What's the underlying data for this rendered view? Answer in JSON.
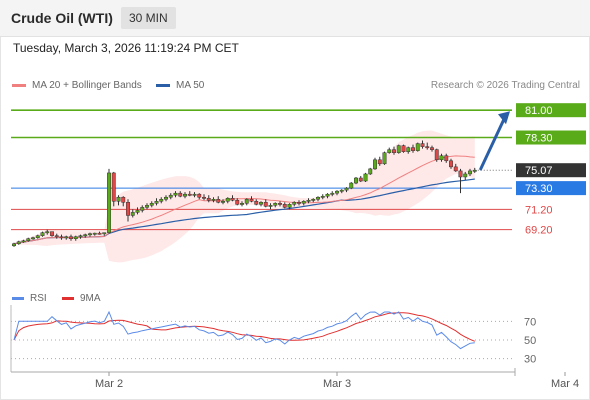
{
  "header": {
    "instrument": "Crude Oil (WTI)",
    "timeframe": "30 MIN",
    "datetime": "Tuesday, March 3, 2026 11:19:24 PM CET"
  },
  "legend": {
    "ma20_label": "MA 20 + Bollinger Bands",
    "ma50_label": "MA 50",
    "credit": "Research © 2026 Trading Central"
  },
  "colors": {
    "ma20": "#f08080",
    "ma50": "#2a5fa8",
    "bands": "#fde0e0",
    "green": "#5aab1a",
    "red": "#e04848",
    "current": "#333333",
    "pivot": "#2a7ae4",
    "arrow": "#2a5fa8",
    "rsi": "#5b8be8",
    "rsi_ma": "#e03030"
  },
  "chart_data": [
    {
      "type": "candlestick",
      "x_labels": [
        "Mar 2",
        "Mar 3",
        "Mar 4"
      ],
      "x_label_index": [
        20,
        68,
        116
      ],
      "ylim": [
        66.0,
        82.5
      ],
      "current_price": "75.07",
      "levels": [
        {
          "value": 81.0,
          "label": "81.00",
          "kind": "resistance"
        },
        {
          "value": 78.3,
          "label": "78.30",
          "kind": "resistance"
        },
        {
          "value": 73.3,
          "label": "73.30",
          "kind": "pivot"
        },
        {
          "value": 71.2,
          "label": "71.20",
          "kind": "support"
        },
        {
          "value": 69.2,
          "label": "69.20",
          "kind": "support"
        }
      ],
      "forecast_arrow": {
        "from_price": 75.2,
        "to_price": 80.9
      },
      "candles": [
        [
          67.6,
          67.9,
          67.5,
          67.8
        ],
        [
          67.8,
          68.1,
          67.7,
          68.0
        ],
        [
          68.0,
          68.2,
          67.9,
          68.1
        ],
        [
          68.1,
          68.4,
          68.0,
          68.3
        ],
        [
          68.3,
          68.5,
          68.2,
          68.4
        ],
        [
          68.4,
          68.7,
          68.3,
          68.6
        ],
        [
          68.6,
          69.0,
          68.5,
          68.9
        ],
        [
          68.9,
          69.2,
          68.7,
          69.0
        ],
        [
          69.0,
          69.0,
          68.5,
          68.6
        ],
        [
          68.6,
          68.8,
          68.3,
          68.5
        ],
        [
          68.5,
          68.7,
          68.2,
          68.4
        ],
        [
          68.4,
          68.6,
          68.2,
          68.5
        ],
        [
          68.5,
          68.7,
          68.1,
          68.3
        ],
        [
          68.3,
          68.6,
          68.1,
          68.5
        ],
        [
          68.5,
          68.7,
          68.3,
          68.6
        ],
        [
          68.6,
          68.8,
          68.4,
          68.7
        ],
        [
          68.7,
          68.9,
          68.5,
          68.8
        ],
        [
          68.8,
          68.9,
          68.6,
          68.85
        ],
        [
          68.85,
          69.0,
          68.7,
          68.8
        ],
        [
          68.8,
          68.9,
          68.6,
          68.9
        ],
        [
          68.9,
          75.2,
          68.8,
          74.8
        ],
        [
          74.8,
          74.9,
          71.5,
          72.0
        ],
        [
          72.0,
          72.6,
          71.6,
          72.4
        ],
        [
          72.4,
          72.5,
          71.5,
          71.9
        ],
        [
          71.9,
          72.2,
          70.0,
          70.6
        ],
        [
          70.6,
          71.2,
          70.4,
          70.9
        ],
        [
          70.9,
          71.4,
          70.7,
          71.1
        ],
        [
          71.1,
          71.6,
          70.9,
          71.4
        ],
        [
          71.4,
          71.8,
          71.2,
          71.6
        ],
        [
          71.6,
          72.0,
          71.4,
          71.8
        ],
        [
          71.8,
          72.3,
          71.6,
          72.0
        ],
        [
          72.0,
          72.4,
          71.8,
          72.2
        ],
        [
          72.2,
          72.6,
          72.0,
          72.4
        ],
        [
          72.4,
          72.8,
          72.2,
          72.6
        ],
        [
          72.6,
          73.0,
          72.4,
          72.8
        ],
        [
          72.8,
          73.0,
          72.4,
          72.5
        ],
        [
          72.5,
          72.9,
          72.3,
          72.7
        ],
        [
          72.7,
          73.0,
          72.5,
          72.6
        ],
        [
          72.6,
          72.9,
          72.4,
          72.7
        ],
        [
          72.7,
          72.8,
          72.2,
          72.4
        ],
        [
          72.4,
          72.7,
          72.1,
          72.3
        ],
        [
          72.3,
          72.6,
          71.9,
          72.1
        ],
        [
          72.1,
          72.4,
          71.9,
          72.2
        ],
        [
          72.2,
          72.5,
          71.8,
          71.9
        ],
        [
          71.9,
          72.2,
          71.7,
          72.0
        ],
        [
          72.0,
          72.4,
          71.8,
          72.3
        ],
        [
          72.3,
          72.6,
          72.0,
          72.1
        ],
        [
          72.1,
          72.3,
          71.6,
          71.7
        ],
        [
          71.7,
          72.0,
          71.5,
          71.8
        ],
        [
          71.8,
          72.3,
          71.6,
          72.2
        ],
        [
          72.2,
          72.5,
          71.9,
          72.0
        ],
        [
          72.0,
          72.2,
          71.6,
          71.7
        ],
        [
          71.7,
          72.0,
          71.5,
          71.9
        ],
        [
          71.9,
          72.2,
          71.4,
          71.5
        ],
        [
          71.5,
          71.8,
          71.2,
          71.6
        ],
        [
          71.6,
          71.9,
          71.4,
          71.8
        ],
        [
          71.8,
          72.0,
          71.5,
          71.7
        ],
        [
          71.7,
          71.9,
          71.3,
          71.4
        ],
        [
          71.4,
          71.8,
          71.2,
          71.7
        ],
        [
          71.7,
          72.0,
          71.5,
          71.9
        ],
        [
          71.9,
          72.1,
          71.6,
          71.8
        ],
        [
          71.8,
          72.1,
          71.6,
          72.0
        ],
        [
          72.0,
          72.3,
          71.8,
          72.1
        ],
        [
          72.1,
          72.3,
          71.9,
          72.2
        ],
        [
          72.2,
          72.5,
          72.0,
          72.4
        ],
        [
          72.4,
          72.7,
          72.2,
          72.5
        ],
        [
          72.5,
          72.8,
          72.3,
          72.7
        ],
        [
          72.7,
          73.0,
          72.5,
          72.8
        ],
        [
          72.8,
          73.1,
          72.6,
          73.0
        ],
        [
          73.0,
          73.2,
          72.8,
          73.1
        ],
        [
          73.1,
          73.4,
          72.9,
          73.3
        ],
        [
          73.3,
          73.9,
          73.2,
          73.8
        ],
        [
          73.8,
          74.4,
          73.7,
          74.3
        ],
        [
          74.3,
          74.5,
          73.9,
          74.0
        ],
        [
          74.0,
          74.8,
          73.9,
          74.7
        ],
        [
          74.7,
          75.3,
          74.6,
          75.2
        ],
        [
          75.2,
          76.3,
          75.1,
          76.1
        ],
        [
          76.1,
          76.4,
          75.5,
          75.7
        ],
        [
          75.7,
          76.9,
          75.6,
          76.8
        ],
        [
          76.8,
          77.3,
          76.7,
          77.1
        ],
        [
          77.1,
          77.4,
          76.6,
          76.8
        ],
        [
          76.8,
          77.6,
          76.7,
          77.5
        ],
        [
          77.5,
          77.6,
          76.8,
          76.9
        ],
        [
          76.9,
          77.4,
          76.7,
          77.3
        ],
        [
          77.3,
          77.6,
          76.8,
          77.0
        ],
        [
          77.0,
          77.8,
          76.9,
          77.7
        ],
        [
          77.7,
          78.0,
          77.2,
          77.4
        ],
        [
          77.4,
          77.8,
          77.1,
          77.3
        ],
        [
          77.3,
          77.5,
          76.9,
          77.1
        ],
        [
          77.1,
          77.2,
          75.9,
          76.1
        ],
        [
          76.1,
          76.7,
          75.9,
          76.5
        ],
        [
          76.5,
          76.7,
          75.8,
          76.0
        ],
        [
          76.0,
          76.2,
          75.2,
          75.4
        ],
        [
          75.4,
          75.7,
          74.9,
          75.0
        ],
        [
          75.0,
          75.2,
          72.8,
          74.4
        ],
        [
          74.4,
          74.9,
          74.1,
          74.7
        ],
        [
          74.7,
          75.2,
          74.5,
          75.0
        ],
        [
          75.0,
          75.3,
          74.8,
          75.07
        ]
      ]
    },
    {
      "type": "line",
      "title": "",
      "series_names": [
        "RSI",
        "9MA"
      ],
      "y_ticks": [
        70,
        50,
        30
      ],
      "ylim": [
        20,
        80
      ]
    }
  ]
}
